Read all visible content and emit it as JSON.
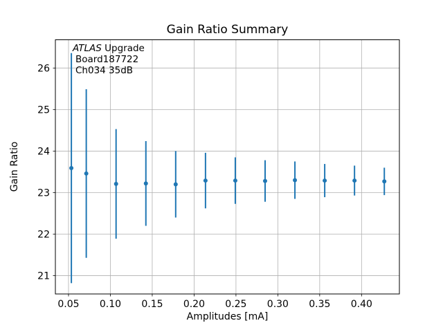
{
  "chart_data": {
    "type": "scatter",
    "title": "Gain Ratio Summary",
    "xlabel": "Amplitudes [mA]",
    "ylabel": "Gain Ratio",
    "annotation": {
      "brand": "ATLAS",
      "line1_rest": "Upgrade",
      "line2": "Board187722",
      "line3": "Ch034 35dB"
    },
    "x": [
      0.0534,
      0.0712,
      0.1068,
      0.1424,
      0.178,
      0.2136,
      0.2492,
      0.2848,
      0.3204,
      0.356,
      0.3916,
      0.4272
    ],
    "y": [
      23.59,
      23.46,
      23.21,
      23.22,
      23.2,
      23.29,
      23.29,
      23.28,
      23.3,
      23.29,
      23.29,
      23.27
    ],
    "yerr": [
      2.77,
      2.03,
      1.32,
      1.02,
      0.8,
      0.67,
      0.56,
      0.5,
      0.45,
      0.4,
      0.36,
      0.33
    ],
    "xlim": [
      0.0343,
      0.4452
    ],
    "ylim": [
      20.56,
      26.68
    ],
    "xticks": {
      "values": [
        0.05,
        0.1,
        0.15,
        0.2,
        0.25,
        0.3,
        0.35,
        0.4
      ],
      "labels": [
        "0.05",
        "0.10",
        "0.15",
        "0.20",
        "0.25",
        "0.30",
        "0.35",
        "0.40"
      ]
    },
    "yticks": {
      "values": [
        21,
        22,
        23,
        24,
        25,
        26
      ],
      "labels": [
        "21",
        "22",
        "23",
        "24",
        "25",
        "26"
      ]
    },
    "grid": true,
    "legend": "none",
    "error_caps": false,
    "marker": "circle",
    "colors": {
      "series": "#1f77b4",
      "grid": "#b0b0b0",
      "spine": "#000000",
      "text": "#000000"
    }
  }
}
